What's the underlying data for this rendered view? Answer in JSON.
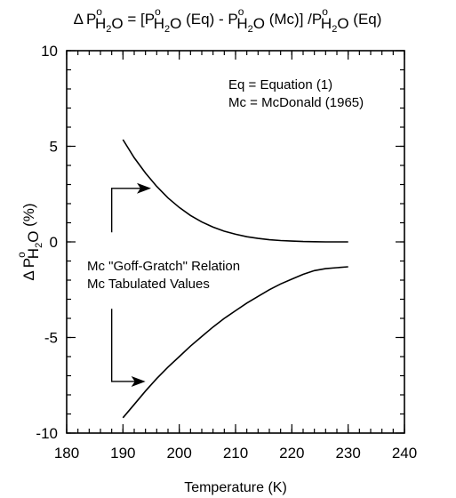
{
  "chart_data": {
    "type": "line",
    "title": {
      "delta": "Δ",
      "p": "P",
      "o": "o",
      "h2o": "H",
      "sub2": "2",
      "o_letter": "O",
      "eq_part1": " = [P",
      "eq_eq": " (Eq) - P",
      "eq_mc": " (Mc)] /P",
      "eq_end": " (Eq)"
    },
    "xlabel": "Temperature  (K)",
    "ylabel": {
      "delta": "Δ",
      "p": "P",
      "o": "o",
      "h": "H",
      "two": "2",
      "O": "O",
      "unit": " (%)"
    },
    "xlim": [
      180,
      240
    ],
    "ylim": [
      -10,
      10
    ],
    "xticks_major": [
      180,
      190,
      200,
      210,
      220,
      230,
      240
    ],
    "xtick_labels": [
      "180",
      "190",
      "200",
      "210",
      "220",
      "230",
      "240"
    ],
    "yticks_major": [
      -10,
      -5,
      0,
      5,
      10
    ],
    "ytick_labels": [
      "-10",
      "-5",
      "0",
      "5",
      "10"
    ],
    "xticks_minor_step": 2,
    "yticks_minor_step": 1,
    "grid": false,
    "legend_text": {
      "line1": "Eq = Equation (1)",
      "line2": "Mc = McDonald (1965)"
    },
    "annotation": {
      "line1": "Mc \"Goff-Gratch\" Relation",
      "line2": "Mc Tabulated Values"
    },
    "series": [
      {
        "x": [
          190,
          192,
          194,
          196,
          198,
          200,
          202,
          204,
          206,
          208,
          210,
          212,
          214,
          216,
          218,
          220,
          222,
          224,
          226,
          228,
          230
        ],
        "y": [
          5.35,
          4.4,
          3.6,
          2.9,
          2.3,
          1.8,
          1.38,
          1.04,
          0.77,
          0.56,
          0.4,
          0.27,
          0.18,
          0.11,
          0.07,
          0.04,
          0.02,
          0.01,
          0.0,
          0.0,
          0.0
        ]
      },
      {
        "x": [
          190,
          192,
          194,
          196,
          198,
          200,
          202,
          204,
          206,
          208,
          210,
          212,
          214,
          216,
          218,
          220,
          222,
          224,
          226,
          228,
          230
        ],
        "y": [
          -9.2,
          -8.5,
          -7.8,
          -7.15,
          -6.55,
          -6.0,
          -5.45,
          -4.95,
          -4.45,
          -4.0,
          -3.6,
          -3.2,
          -2.85,
          -2.5,
          -2.2,
          -1.95,
          -1.7,
          -1.5,
          -1.4,
          -1.35,
          -1.3
        ]
      }
    ],
    "arrows": [
      {
        "stem_x": 188,
        "stem_y_from": 2.8,
        "stem_y_to": 0.5,
        "tip_x": 195,
        "tip_y": 2.8
      },
      {
        "stem_x": 188,
        "stem_y_from": -7.3,
        "stem_y_to": -3.5,
        "tip_x": 194,
        "tip_y": -7.3
      }
    ]
  }
}
